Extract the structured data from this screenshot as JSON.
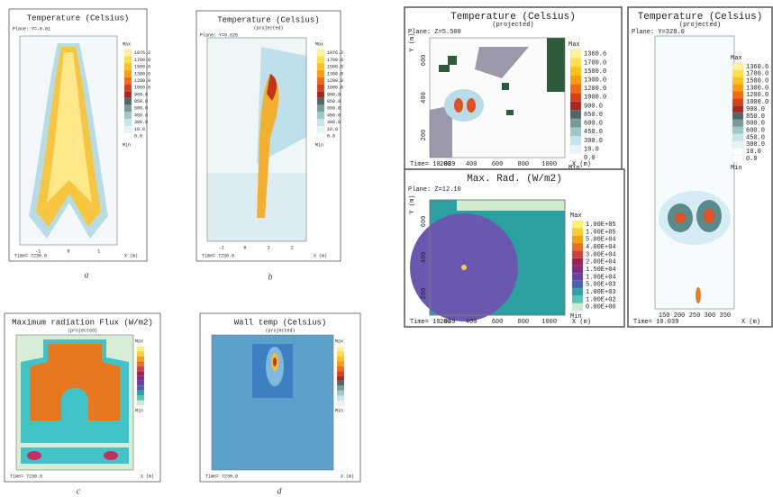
{
  "panels": [
    {
      "title": "Temperature (Celsius)",
      "plane": "Plane: Y=-0.01",
      "colorbar": [
        "1876.2",
        "1700.0",
        "1500.0",
        "1300.0",
        "1200.0",
        "1000.0",
        "900.0",
        "850.0",
        "600.0",
        "450.0",
        "300.0",
        "10.0",
        "0.0"
      ],
      "max": "Max",
      "min": "Min",
      "time": "Time= 7230.0",
      "xticks": [
        "-1",
        "0",
        "1"
      ],
      "xlabel": "X (m)",
      "caption": "a"
    },
    {
      "title": "Temperature (Celsius)",
      "subtitle": "(projected)",
      "plane": "Plane: Y=0.625",
      "colorbar": [
        "1876.2",
        "1700.0",
        "1500.0",
        "1300.0",
        "1200.0",
        "1000.0",
        "900.0",
        "850.0",
        "600.0",
        "450.0",
        "300.0",
        "10.0",
        "0.0"
      ],
      "max": "Max",
      "min": "Min",
      "time": "Time= 7230.0",
      "xticks": [
        "-1",
        "0",
        "1",
        "2"
      ],
      "xlabel": "X (m)",
      "caption": "b"
    },
    {
      "title": "Maximum radiation Flux (W/m2)",
      "subtitle": "(projected)",
      "max": "Max",
      "min": "Min",
      "time": "Time= 7230.0",
      "xlabel": "X (m)",
      "caption": "c"
    },
    {
      "title": "Wall temp (Celsius)",
      "subtitle": "(projected)",
      "max": "Max",
      "min": "Min",
      "time": "Time= 7230.0",
      "xlabel": "X (m)",
      "caption": "d"
    },
    {
      "title": "Temperature (Celsius)",
      "subtitle": "(projected)",
      "plane": "Plane: Z=5.500",
      "colorbar": [
        "1360.6",
        "1700.0",
        "1500.0",
        "1300.0",
        "1200.0",
        "1000.0",
        "900.0",
        "850.0",
        "600.0",
        "450.0",
        "300.0",
        "10.0",
        "0.0"
      ],
      "max": "Max",
      "min": "Min",
      "time": "Time= 10.039",
      "xticks": [
        "200",
        "400",
        "600",
        "800",
        "1000"
      ],
      "xlabel": "X (m)",
      "yticks": [
        "200",
        "400",
        "600"
      ],
      "ylabel": "Y (m)"
    },
    {
      "title": "Max. Rad. (W/m2)",
      "plane": "Plane: Z=12.10",
      "colorbar": [
        "1.00E+05",
        "1.00E+05",
        "5.00E+04",
        "4.00E+04",
        "3.00E+04",
        "2.00E+04",
        "1.50E+04",
        "1.00E+04",
        "5.00E+03",
        "1.00E+03",
        "1.00E+02",
        "0.00E+00"
      ],
      "max": "Max",
      "min": "Min",
      "time": "Time= 10.039",
      "xticks": [
        "200",
        "400",
        "600",
        "800",
        "1000"
      ],
      "xlabel": "X (m)",
      "yticks": [
        "200",
        "400",
        "600"
      ],
      "ylabel": "Y (m)"
    },
    {
      "title": "Temperature (Celsius)",
      "subtitle": "(projected)",
      "plane": "Plane: Y=328.0",
      "colorbar": [
        "1360.6",
        "1700.0",
        "1500.0",
        "1300.0",
        "1200.0",
        "1000.0",
        "900.0",
        "850.0",
        "800.0",
        "600.0",
        "450.0",
        "300.0",
        "10.0",
        "0.0"
      ],
      "max": "Max",
      "min": "Min",
      "time": "Time= 10.039",
      "xticks": [
        "150",
        "200",
        "250",
        "300",
        "350"
      ],
      "xlabel": "X (m)"
    }
  ]
}
